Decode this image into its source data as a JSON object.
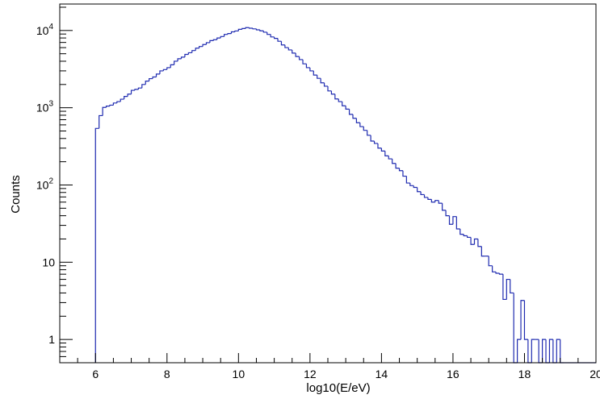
{
  "colors": {
    "line": "#1f2bb0",
    "axis": "#000000",
    "background": "#ffffff"
  },
  "chart_data": {
    "type": "histogram",
    "xlabel": "log10(E/eV)",
    "ylabel": "Counts",
    "xlim": [
      5,
      20
    ],
    "ylim": [
      0.5,
      22000
    ],
    "yscale": "log",
    "grid": false,
    "bin_width": 0.1,
    "x_ticks": [
      {
        "value": 6,
        "label": "6"
      },
      {
        "value": 8,
        "label": "8"
      },
      {
        "value": 10,
        "label": "10"
      },
      {
        "value": 12,
        "label": "12"
      },
      {
        "value": 14,
        "label": "14"
      },
      {
        "value": 16,
        "label": "16"
      },
      {
        "value": 18,
        "label": "18"
      },
      {
        "value": 20,
        "label": "20"
      }
    ],
    "y_ticks": [
      {
        "value": 1,
        "base": "1",
        "exp": ""
      },
      {
        "value": 10,
        "base": "10",
        "exp": ""
      },
      {
        "value": 100,
        "base": "10",
        "exp": "2"
      },
      {
        "value": 1000,
        "base": "10",
        "exp": "3"
      },
      {
        "value": 10000,
        "base": "10",
        "exp": "4"
      }
    ],
    "series": [
      {
        "bin_edges_start": 6.0,
        "counts": [
          540,
          790,
          1010,
          1050,
          1080,
          1150,
          1200,
          1290,
          1400,
          1500,
          1680,
          1730,
          1800,
          2000,
          2210,
          2380,
          2500,
          2730,
          3000,
          3120,
          3300,
          3600,
          4000,
          4310,
          4520,
          4900,
          5150,
          5500,
          5900,
          6200,
          6580,
          6950,
          7400,
          7600,
          8000,
          8350,
          8900,
          9120,
          9600,
          9850,
          10350,
          10600,
          10900,
          10700,
          10500,
          10200,
          9900,
          9500,
          8900,
          8250,
          7900,
          7250,
          6500,
          6000,
          5600,
          5100,
          4600,
          4200,
          3700,
          3300,
          3000,
          2650,
          2400,
          2100,
          1900,
          1650,
          1500,
          1300,
          1200,
          1060,
          960,
          820,
          730,
          640,
          570,
          510,
          440,
          370,
          345,
          300,
          275,
          238,
          218,
          190,
          165,
          153,
          130,
          106,
          98,
          93,
          82,
          75,
          69,
          65,
          60,
          63,
          58,
          47,
          40,
          31,
          39,
          27,
          23,
          22,
          21,
          17,
          20,
          16,
          12,
          12,
          9,
          7.5,
          7.2,
          7,
          3.3,
          6,
          4,
          0,
          1,
          3.2,
          1,
          0,
          1,
          1,
          0,
          1,
          0,
          1,
          0,
          1,
          0,
          0,
          0,
          0,
          0,
          0,
          0,
          0,
          0,
          0
        ]
      }
    ]
  }
}
